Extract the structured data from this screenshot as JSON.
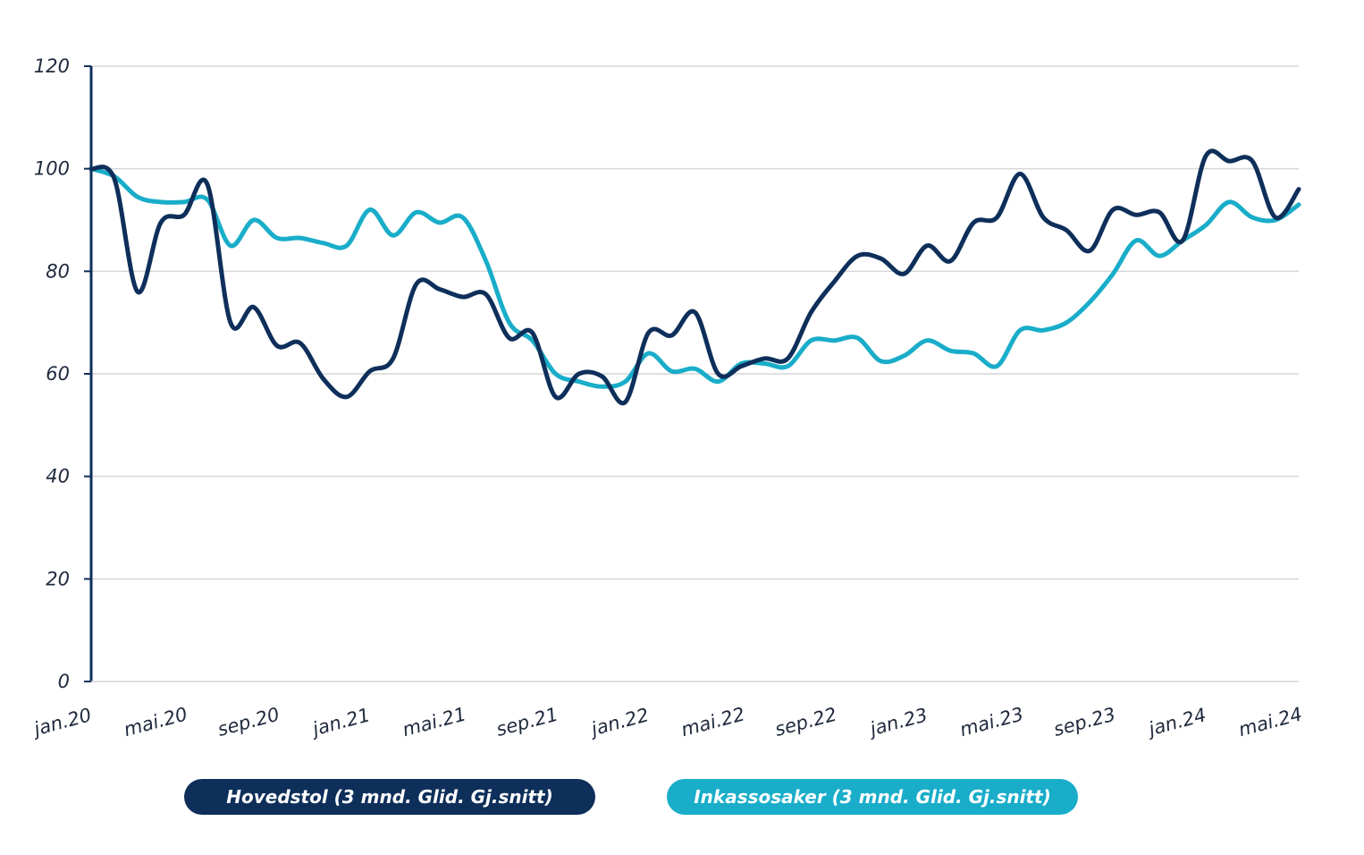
{
  "chart_data": {
    "type": "line",
    "title": "",
    "xlabel": "",
    "ylabel": "",
    "ylim": [
      0,
      120
    ],
    "yticks": [
      0,
      20,
      40,
      60,
      80,
      100,
      120
    ],
    "grid": "horizontal",
    "legend_position": "bottom",
    "xticks": [
      "jan.20",
      "mai.20",
      "sep.20",
      "jan.21",
      "mai.21",
      "sep.21",
      "jan.22",
      "mai.22",
      "sep.22",
      "jan.23",
      "mai.23",
      "sep.23",
      "jan.24",
      "mai.24"
    ],
    "x": [
      "jan.20",
      "feb.20",
      "mar.20",
      "apr.20",
      "mai.20",
      "jun.20",
      "jul.20",
      "aug.20",
      "sep.20",
      "okt.20",
      "nov.20",
      "des.20",
      "jan.21",
      "feb.21",
      "mar.21",
      "apr.21",
      "mai.21",
      "jun.21",
      "jul.21",
      "aug.21",
      "sep.21",
      "okt.21",
      "nov.21",
      "des.21",
      "jan.22",
      "feb.22",
      "mar.22",
      "apr.22",
      "mai.22",
      "jun.22",
      "jul.22",
      "aug.22",
      "sep.22",
      "okt.22",
      "nov.22",
      "des.22",
      "jan.23",
      "feb.23",
      "mar.23",
      "apr.23",
      "mai.23",
      "jun.23",
      "jul.23",
      "aug.23",
      "sep.23",
      "okt.23",
      "nov.23",
      "des.23",
      "jan.24",
      "feb.24",
      "mar.24",
      "apr.24",
      "mai.24"
    ],
    "series": [
      {
        "name": "Hovedstol  (3 mnd. Glid. Gj.snitt)",
        "color": "#0e2f5a",
        "values": [
          100,
          98,
          76,
          89.5,
          91,
          97,
          70,
          73,
          65.5,
          66,
          59,
          55.5,
          60.5,
          63,
          77.5,
          76.5,
          75,
          75.5,
          67,
          68,
          55.5,
          60,
          59.5,
          54.5,
          68,
          67.5,
          72,
          60,
          61.5,
          63,
          63,
          72,
          78,
          83,
          82.5,
          79.5,
          85,
          82,
          89.5,
          90.5,
          99,
          90.5,
          88,
          84,
          92,
          91,
          91.5,
          86,
          102.5,
          101.5,
          101.5,
          90.5,
          96
        ]
      },
      {
        "name": "Inkassosaker  (3 mnd. Glid. Gj.snitt)",
        "color": "#19adc9",
        "values": [
          100,
          98.5,
          94.5,
          93.5,
          93.5,
          94,
          85,
          90,
          86.5,
          86.5,
          85.5,
          85,
          92,
          87,
          91.5,
          89.5,
          90.5,
          82,
          70,
          66.5,
          60,
          58.5,
          57.5,
          58.5,
          64,
          60.5,
          61,
          58.5,
          62,
          62,
          61.5,
          66.5,
          66.5,
          67,
          62.5,
          63.5,
          66.5,
          64.5,
          64,
          61.5,
          68.5,
          68.5,
          70,
          74,
          79.5,
          86,
          83,
          86,
          89,
          93.5,
          90.5,
          90,
          93
        ]
      }
    ]
  }
}
